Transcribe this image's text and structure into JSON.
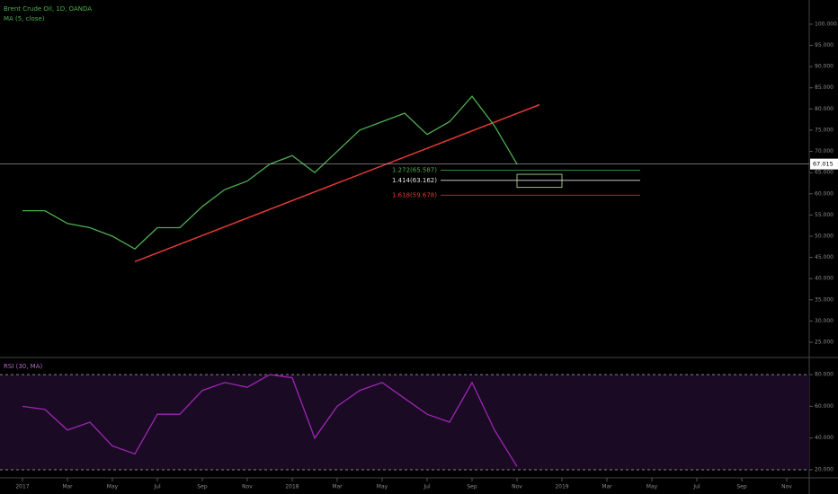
{
  "chart_data": [
    {
      "type": "line",
      "title": "Brent Crude Oil, 1D, OANDA",
      "x": [
        "2017-01",
        "2017-02",
        "2017-03",
        "2017-04",
        "2017-05",
        "2017-06",
        "2017-07",
        "2017-08",
        "2017-09",
        "2017-10",
        "2017-11",
        "2017-12",
        "2018-01",
        "2018-02",
        "2018-03",
        "2018-04",
        "2018-05",
        "2018-06",
        "2018-07",
        "2018-08",
        "2018-09",
        "2018-10",
        "2018-11"
      ],
      "series": [
        {
          "name": "MA (5, close)",
          "color": "#4caf50",
          "values": [
            56,
            56,
            53,
            52,
            50,
            47,
            52,
            52,
            57,
            61,
            63,
            67,
            69,
            65,
            70,
            75,
            77,
            79,
            74,
            77,
            83,
            76,
            67
          ]
        }
      ],
      "xlim": [
        "2016-12",
        "2019-12"
      ],
      "ylim": [
        21.4,
        105.7
      ],
      "yticks": [
        {
          "value": 25,
          "label": "25.000"
        },
        {
          "value": 30,
          "label": "30.000"
        },
        {
          "value": 35,
          "label": "35.000"
        },
        {
          "value": 40,
          "label": "40.000"
        },
        {
          "value": 45,
          "label": "45.000"
        },
        {
          "value": 50,
          "label": "50.000"
        },
        {
          "value": 55,
          "label": "55.000"
        },
        {
          "value": 60,
          "label": "60.000"
        },
        {
          "value": 65,
          "label": "65.000"
        },
        {
          "value": 70,
          "label": "70.000"
        },
        {
          "value": 75,
          "label": "75.000"
        },
        {
          "value": 80,
          "label": "80.000"
        },
        {
          "value": 85,
          "label": "85.000"
        },
        {
          "value": 90,
          "label": "90.000"
        },
        {
          "value": 95,
          "label": "95.000"
        },
        {
          "value": 100,
          "label": "100.000"
        }
      ],
      "last_price": {
        "value": 67.015,
        "label": "67.015"
      },
      "trendline": {
        "x": [
          "2017-06",
          "2018-12"
        ],
        "values": [
          44,
          81
        ],
        "color": "#e53935"
      },
      "levels": [
        {
          "value": 65.587,
          "label": "1.272(65.587)",
          "color": "#4caf50"
        },
        {
          "value": 63.162,
          "label": "1.414(63.162)",
          "color": "#e0e0e0"
        },
        {
          "value": 59.678,
          "label": "1.618(59.678)",
          "color": "#e53935"
        }
      ],
      "target_box": {
        "x": [
          "2018-11",
          "2019-01"
        ],
        "values": [
          61.5,
          64.6
        ],
        "color": "#c5e1a5"
      }
    },
    {
      "type": "line",
      "title": "RSI (30, MA)",
      "x": [
        "2017-01",
        "2017-02",
        "2017-03",
        "2017-04",
        "2017-05",
        "2017-06",
        "2017-07",
        "2017-08",
        "2017-09",
        "2017-10",
        "2017-11",
        "2017-12",
        "2018-01",
        "2018-02",
        "2018-03",
        "2018-04",
        "2018-05",
        "2018-06",
        "2018-07",
        "2018-08",
        "2018-09",
        "2018-10",
        "2018-11"
      ],
      "series": [
        {
          "color": "#9c27b0",
          "values": [
            60,
            58,
            45,
            50,
            35,
            30,
            55,
            55,
            70,
            75,
            72,
            80,
            78,
            40,
            60,
            70,
            75,
            65,
            55,
            50,
            75,
            45,
            22
          ]
        }
      ],
      "xlim": [
        "2016-12",
        "2019-12"
      ],
      "ylim": [
        14.9,
        90.8
      ],
      "yticks": [
        {
          "value": 20,
          "label": "20.000"
        },
        {
          "value": 40,
          "label": "40.000"
        },
        {
          "value": 60,
          "label": "60.000"
        },
        {
          "value": 80,
          "label": "80.000"
        }
      ],
      "xticks": [
        {
          "value": "2017-01",
          "label": "2017"
        },
        {
          "value": "2017-03",
          "label": "Mar"
        },
        {
          "value": "2017-05",
          "label": "May"
        },
        {
          "value": "2017-07",
          "label": "Jul"
        },
        {
          "value": "2017-09",
          "label": "Sep"
        },
        {
          "value": "2017-11",
          "label": "Nov"
        },
        {
          "value": "2018-01",
          "label": "2018"
        },
        {
          "value": "2018-03",
          "label": "Mar"
        },
        {
          "value": "2018-05",
          "label": "May"
        },
        {
          "value": "2018-07",
          "label": "Jul"
        },
        {
          "value": "2018-09",
          "label": "Sep"
        },
        {
          "value": "2018-11",
          "label": "Nov"
        },
        {
          "value": "2019-01",
          "label": "2019"
        },
        {
          "value": "2019-03",
          "label": "Mar"
        },
        {
          "value": "2019-05",
          "label": "May"
        },
        {
          "value": "2019-07",
          "label": "Jul"
        },
        {
          "value": "2019-09",
          "label": "Sep"
        },
        {
          "value": "2019-11",
          "label": "Nov"
        }
      ]
    }
  ]
}
